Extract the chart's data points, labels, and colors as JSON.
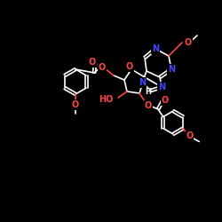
{
  "bg": "#000000",
  "bond_color": "#ffffff",
  "atom_colors": {
    "O": "#ff4444",
    "N": "#4444ff",
    "C": "#ffffff"
  },
  "bond_width": 1.2,
  "font_size": 7
}
